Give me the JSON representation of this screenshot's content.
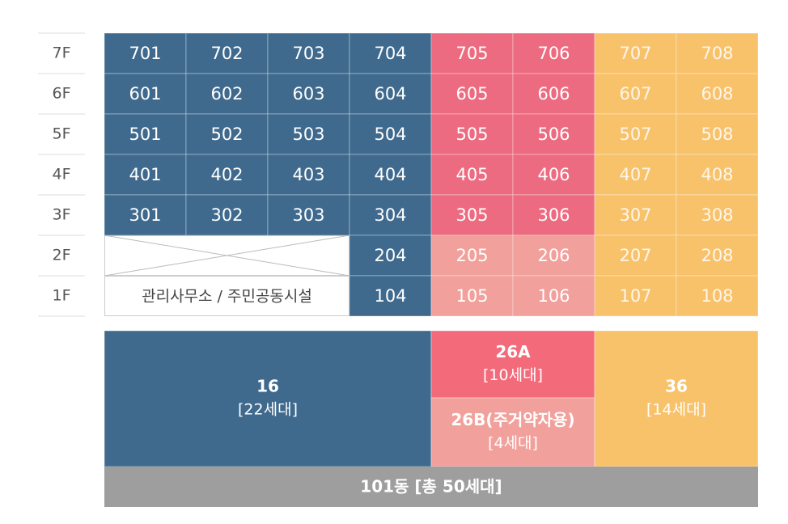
{
  "floors": [
    {
      "label": "7F",
      "units": [
        "701",
        "702",
        "703",
        "704",
        "705",
        "706",
        "707",
        "708"
      ]
    },
    {
      "label": "6F",
      "units": [
        "601",
        "602",
        "603",
        "604",
        "605",
        "606",
        "607",
        "608"
      ]
    },
    {
      "label": "5F",
      "units": [
        "501",
        "502",
        "503",
        "504",
        "505",
        "506",
        "507",
        "508"
      ]
    },
    {
      "label": "4F",
      "units": [
        "401",
        "402",
        "403",
        "404",
        "405",
        "406",
        "407",
        "408"
      ]
    },
    {
      "label": "3F",
      "units": [
        "301",
        "302",
        "303",
        "304",
        "305",
        "306",
        "307",
        "308"
      ]
    },
    {
      "label": "2F",
      "units": [
        "204",
        "205",
        "206",
        "207",
        "208"
      ]
    },
    {
      "label": "1F",
      "units": [
        "104",
        "105",
        "106",
        "107",
        "108"
      ]
    }
  ],
  "facility": "관리사무소 / 주민공동시설",
  "types": [
    {
      "name": "16",
      "count": "[22세대]"
    },
    {
      "name": "26A",
      "count": "[10세대]"
    },
    {
      "name": "26B(주거약자용)",
      "count": "[4세대]"
    },
    {
      "name": "36",
      "count": "[14세대]"
    }
  ],
  "total": "101동 [총 50세대]"
}
